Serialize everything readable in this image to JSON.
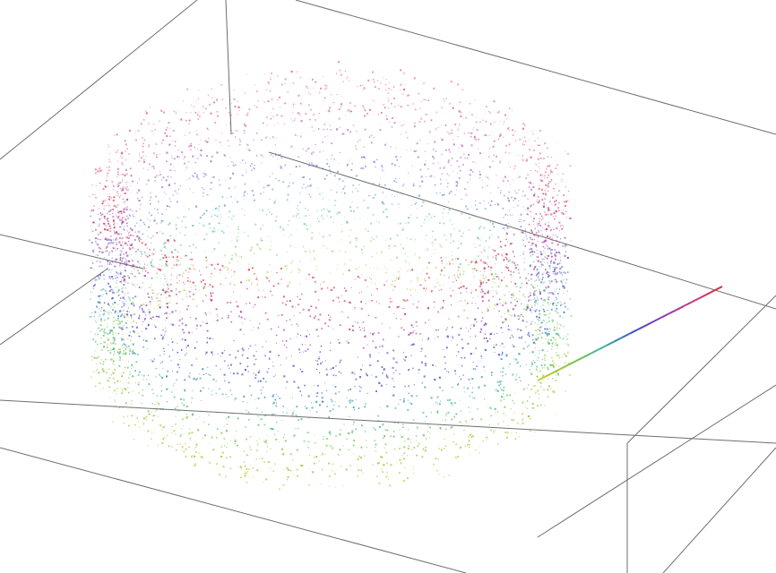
{
  "scene": {
    "kind": "3d-point-cloud",
    "shape": "cylindrical-ring",
    "background_color": "#ffffff",
    "box_line_color": "#6e6e6e",
    "color_map": [
      "#c8c83c",
      "#78c83c",
      "#3cb4a0",
      "#3c50c8",
      "#8c3cb4",
      "#c83c78",
      "#dc283c"
    ],
    "color_by": "height"
  }
}
